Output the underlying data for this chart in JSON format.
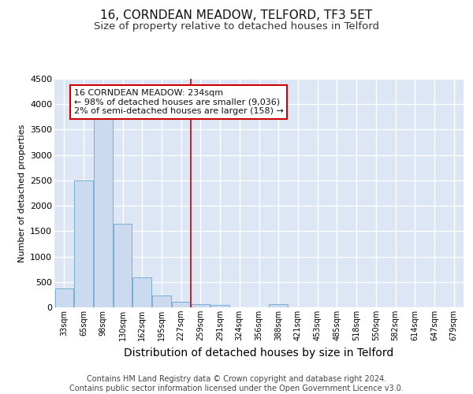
{
  "title": "16, CORNDEAN MEADOW, TELFORD, TF3 5ET",
  "subtitle": "Size of property relative to detached houses in Telford",
  "xlabel": "Distribution of detached houses by size in Telford",
  "ylabel": "Number of detached properties",
  "categories": [
    "33sqm",
    "65sqm",
    "98sqm",
    "130sqm",
    "162sqm",
    "195sqm",
    "227sqm",
    "259sqm",
    "291sqm",
    "324sqm",
    "356sqm",
    "388sqm",
    "421sqm",
    "453sqm",
    "485sqm",
    "518sqm",
    "550sqm",
    "582sqm",
    "614sqm",
    "647sqm",
    "679sqm"
  ],
  "values": [
    370,
    2500,
    3750,
    1640,
    590,
    240,
    105,
    60,
    40,
    0,
    0,
    60,
    0,
    0,
    0,
    0,
    0,
    0,
    0,
    0,
    0
  ],
  "bar_color": "#ccdaf0",
  "bar_edge_color": "#7aaed4",
  "vline_x_index": 6,
  "vline_color": "#cc0000",
  "annotation_text": "16 CORNDEAN MEADOW: 234sqm\n← 98% of detached houses are smaller (9,036)\n2% of semi-detached houses are larger (158) →",
  "annotation_box_color": "#ffffff",
  "annotation_box_edge_color": "#cc0000",
  "ylim": [
    0,
    4500
  ],
  "yticks": [
    0,
    500,
    1000,
    1500,
    2000,
    2500,
    3000,
    3500,
    4000,
    4500
  ],
  "background_color": "#dce6f5",
  "grid_color": "#ffffff",
  "title_fontsize": 11,
  "subtitle_fontsize": 9.5,
  "xlabel_fontsize": 10,
  "ylabel_fontsize": 8,
  "footer_text": "Contains HM Land Registry data © Crown copyright and database right 2024.\nContains public sector information licensed under the Open Government Licence v3.0.",
  "footer_fontsize": 7
}
